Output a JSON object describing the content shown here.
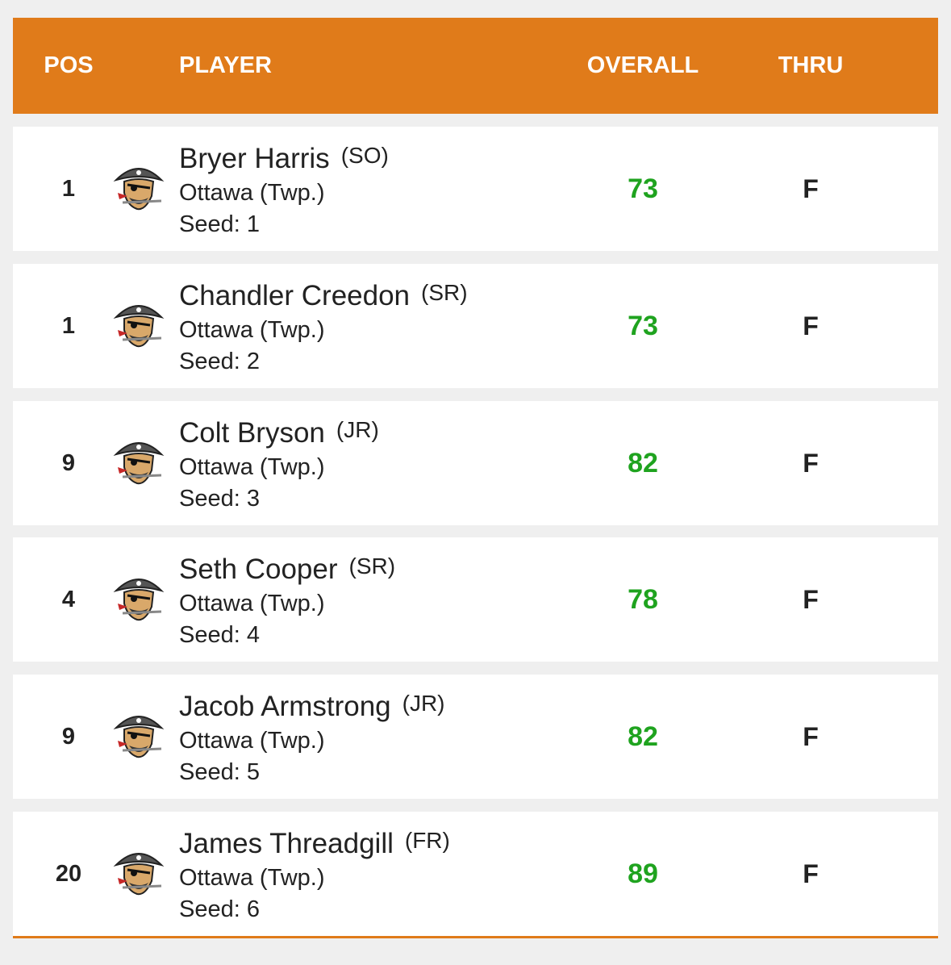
{
  "header": {
    "columns": [
      "POS",
      "PLAYER",
      "OVERALL",
      "THRU"
    ]
  },
  "rows": [
    {
      "pos": "1",
      "name": "Bryer Harris",
      "year": "(SO)",
      "school": "Ottawa (Twp.)",
      "seed": "Seed: 1",
      "overall": "73",
      "thru": "F"
    },
    {
      "pos": "1",
      "name": "Chandler Creedon",
      "year": "(SR)",
      "school": "Ottawa (Twp.)",
      "seed": "Seed: 2",
      "overall": "73",
      "thru": "F"
    },
    {
      "pos": "9",
      "name": "Colt Bryson",
      "year": "(JR)",
      "school": "Ottawa (Twp.)",
      "seed": "Seed: 3",
      "overall": "82",
      "thru": "F"
    },
    {
      "pos": "4",
      "name": "Seth Cooper",
      "year": "(SR)",
      "school": "Ottawa (Twp.)",
      "seed": "Seed: 4",
      "overall": "78",
      "thru": "F"
    },
    {
      "pos": "9",
      "name": "Jacob Armstrong",
      "year": "(JR)",
      "school": "Ottawa (Twp.)",
      "seed": "Seed: 5",
      "overall": "82",
      "thru": "F"
    },
    {
      "pos": "20",
      "name": "James Threadgill",
      "year": "(FR)",
      "school": "Ottawa (Twp.)",
      "seed": "Seed: 6",
      "overall": "89",
      "thru": "F"
    }
  ]
}
